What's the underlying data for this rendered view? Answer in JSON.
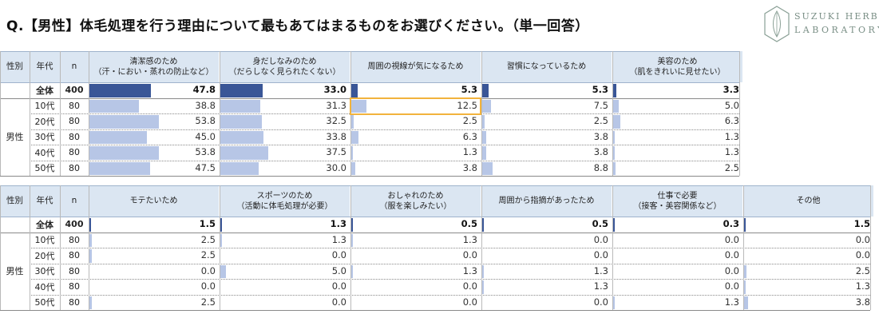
{
  "title": "Q.【男性】体毛処理を行う理由について最も​あてはまるものをお選びください。（単一回答）",
  "logo": {
    "line1": "SUZUKI HERB",
    "line2": "LABORATORY"
  },
  "colors": {
    "header_bg": "#dbe6f2",
    "bar_total": "#3a5697",
    "bar_segment": "#b7c6e6",
    "highlight": "#f2b33d"
  },
  "chart_data": [
    {
      "type": "table",
      "header": {
        "gender": "性別",
        "age": "年代",
        "n": "n"
      },
      "gender_label": "男性",
      "rows": [
        {
          "label": "全体",
          "n": "400",
          "total": true
        },
        {
          "label": "10代",
          "n": "80"
        },
        {
          "label": "20代",
          "n": "80"
        },
        {
          "label": "30代",
          "n": "80"
        },
        {
          "label": "40代",
          "n": "80"
        },
        {
          "label": "50代",
          "n": "80"
        }
      ],
      "columns": [
        {
          "line1": "清潔感のため",
          "line2": "（汗・におい・蒸れの防止など）",
          "values": [
            "47.8",
            "38.8",
            "53.8",
            "45.0",
            "53.8",
            "47.5"
          ]
        },
        {
          "line1": "身だしなみのため",
          "line2": "（だらしなく見られたくない）",
          "values": [
            "33.0",
            "31.3",
            "32.5",
            "33.8",
            "37.5",
            "30.0"
          ]
        },
        {
          "line1": "周囲の視線が気になるため",
          "line2": "",
          "values": [
            "5.3",
            "12.5",
            "2.5",
            "6.3",
            "1.3",
            "3.8"
          ]
        },
        {
          "line1": "習慣になっているため",
          "line2": "",
          "values": [
            "5.3",
            "7.5",
            "2.5",
            "3.8",
            "3.8",
            "8.8"
          ]
        },
        {
          "line1": "美容のため",
          "line2": "（肌をきれいに見せたい）",
          "values": [
            "3.3",
            "5.0",
            "6.3",
            "1.3",
            "1.3",
            "2.5"
          ]
        }
      ],
      "highlight": {
        "column": 2,
        "row": 1
      }
    },
    {
      "type": "table",
      "header": {
        "gender": "性別",
        "age": "年代",
        "n": "n"
      },
      "gender_label": "男性",
      "rows": [
        {
          "label": "全体",
          "n": "400",
          "total": true
        },
        {
          "label": "10代",
          "n": "80"
        },
        {
          "label": "20代",
          "n": "80"
        },
        {
          "label": "30代",
          "n": "80"
        },
        {
          "label": "40代",
          "n": "80"
        },
        {
          "label": "50代",
          "n": "80"
        }
      ],
      "columns": [
        {
          "line1": "モテたいため",
          "line2": "",
          "values": [
            "1.5",
            "2.5",
            "2.5",
            "0.0",
            "0.0",
            "2.5"
          ]
        },
        {
          "line1": "スポーツのため",
          "line2": "（活動に体毛処理が必要）",
          "values": [
            "1.3",
            "1.3",
            "0.0",
            "5.0",
            "0.0",
            "0.0"
          ]
        },
        {
          "line1": "おしゃれのため",
          "line2": "（服を楽しみたい）",
          "values": [
            "0.5",
            "1.3",
            "0.0",
            "1.3",
            "0.0",
            "0.0"
          ]
        },
        {
          "line1": "周囲から指摘があったため",
          "line2": "",
          "values": [
            "0.5",
            "0.0",
            "0.0",
            "1.3",
            "1.3",
            "0.0"
          ]
        },
        {
          "line1": "仕事で必要",
          "line2": "（接客・美容関係など）",
          "values": [
            "0.3",
            "0.0",
            "0.0",
            "0.0",
            "0.0",
            "1.3"
          ]
        },
        {
          "line1": "その他",
          "line2": "",
          "values": [
            "1.5",
            "0.0",
            "0.0",
            "2.5",
            "1.3",
            "3.8"
          ]
        }
      ]
    }
  ]
}
